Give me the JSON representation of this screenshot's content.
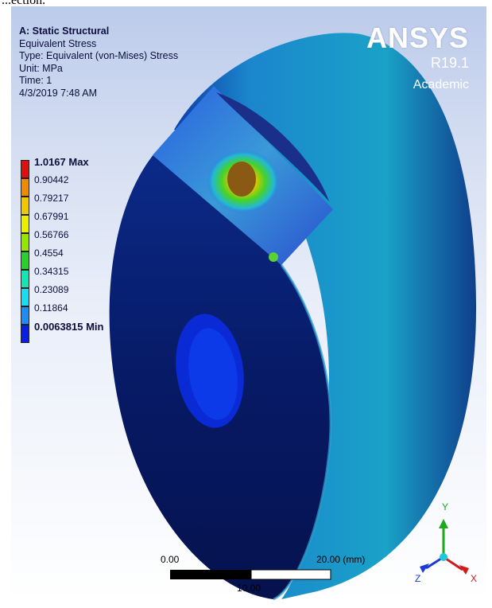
{
  "fragment_text": "...ection.",
  "info": {
    "title": "A: Static Structural",
    "result": "Equivalent Stress",
    "type": "Type: Equivalent (von-Mises) Stress",
    "unit": "Unit: MPa",
    "time": "Time: 1",
    "date": "4/3/2019 7:48 AM"
  },
  "brand": {
    "name": "ANSYS",
    "version": "R19.1",
    "edition": "Academic"
  },
  "legend": [
    {
      "label": "1.0167 Max",
      "color": "#e11010"
    },
    {
      "label": "0.90442",
      "color": "#f08a00"
    },
    {
      "label": "0.79217",
      "color": "#f0c800"
    },
    {
      "label": "0.67991",
      "color": "#e8f000"
    },
    {
      "label": "0.56766",
      "color": "#96e600"
    },
    {
      "label": "0.4554",
      "color": "#28d228"
    },
    {
      "label": "0.34315",
      "color": "#12e6b4"
    },
    {
      "label": "0.23089",
      "color": "#18dcf0"
    },
    {
      "label": "0.11864",
      "color": "#1e8cf0"
    },
    {
      "label": "0.0063815 Min",
      "color": "#0a1ee6"
    }
  ],
  "scale": {
    "left": "0.00",
    "right": "20.00 (mm)",
    "mid": "10.00"
  },
  "triad": {
    "x": "X",
    "y": "Y",
    "z": "Z"
  }
}
